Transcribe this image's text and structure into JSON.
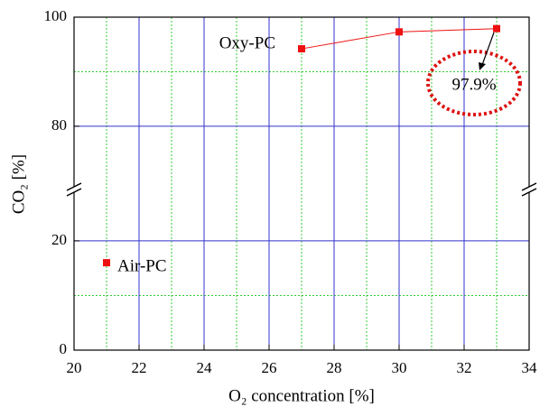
{
  "chart_data": {
    "type": "line",
    "xlabel": "O₂ concentration [%]",
    "ylabel": "CO₂ [%]",
    "xlim": [
      20,
      34
    ],
    "xticks": [
      20,
      22,
      24,
      26,
      28,
      30,
      32,
      34
    ],
    "xminor": [
      21,
      23,
      25,
      27,
      29,
      31,
      33
    ],
    "ylim": [
      0,
      100
    ],
    "yticks": [
      0,
      20,
      80,
      100
    ],
    "yminor": [
      10,
      90
    ],
    "y_break": [
      29.4,
      68.4
    ],
    "grid": true,
    "major_grid_color": "#3333cc",
    "minor_grid_color": "#33cc33",
    "series": [
      {
        "name": "Oxy-PC",
        "color": "#ee1111",
        "x": [
          27,
          30,
          33
        ],
        "values": [
          94.2,
          97.3,
          97.9
        ],
        "value_labels": [
          null,
          null,
          "97.9%"
        ]
      },
      {
        "name": "Air-PC",
        "color": "#ee1111",
        "x": [
          21
        ],
        "values": [
          16
        ]
      }
    ]
  }
}
